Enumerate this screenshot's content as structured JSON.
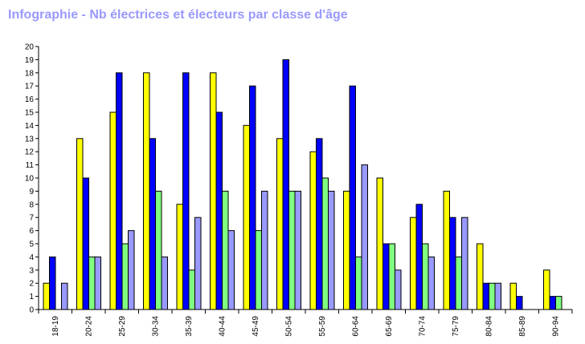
{
  "chart_data": {
    "type": "bar",
    "title": "Infographie - Nb électrices et électeurs par classe d'âge",
    "xlabel": "",
    "ylabel": "",
    "ylim": [
      0,
      20
    ],
    "yticks": [
      0,
      1,
      2,
      3,
      4,
      5,
      6,
      7,
      8,
      9,
      10,
      11,
      12,
      13,
      14,
      15,
      16,
      17,
      18,
      19,
      20
    ],
    "grid": false,
    "legend": "none",
    "categories": [
      "18-19",
      "20-24",
      "25-29",
      "30-34",
      "35-39",
      "40-44",
      "45-49",
      "50-54",
      "55-59",
      "60-64",
      "65-69",
      "70-74",
      "75-79",
      "80-84",
      "85-89",
      "90-94"
    ],
    "series": [
      {
        "color": "#ffff00",
        "values": [
          2,
          13,
          15,
          18,
          8,
          18,
          14,
          13,
          12,
          9,
          10,
          7,
          9,
          5,
          2,
          3
        ]
      },
      {
        "color": "#0000ff",
        "values": [
          4,
          10,
          18,
          13,
          18,
          15,
          17,
          19,
          13,
          17,
          5,
          8,
          7,
          2,
          1,
          1
        ]
      },
      {
        "color": "#80ff80",
        "values": [
          0,
          4,
          5,
          9,
          3,
          9,
          6,
          9,
          10,
          4,
          5,
          5,
          4,
          2,
          0,
          1
        ]
      },
      {
        "color": "#9999ff",
        "values": [
          2,
          4,
          6,
          4,
          7,
          6,
          9,
          9,
          9,
          11,
          3,
          4,
          7,
          2,
          0,
          0
        ]
      }
    ]
  }
}
